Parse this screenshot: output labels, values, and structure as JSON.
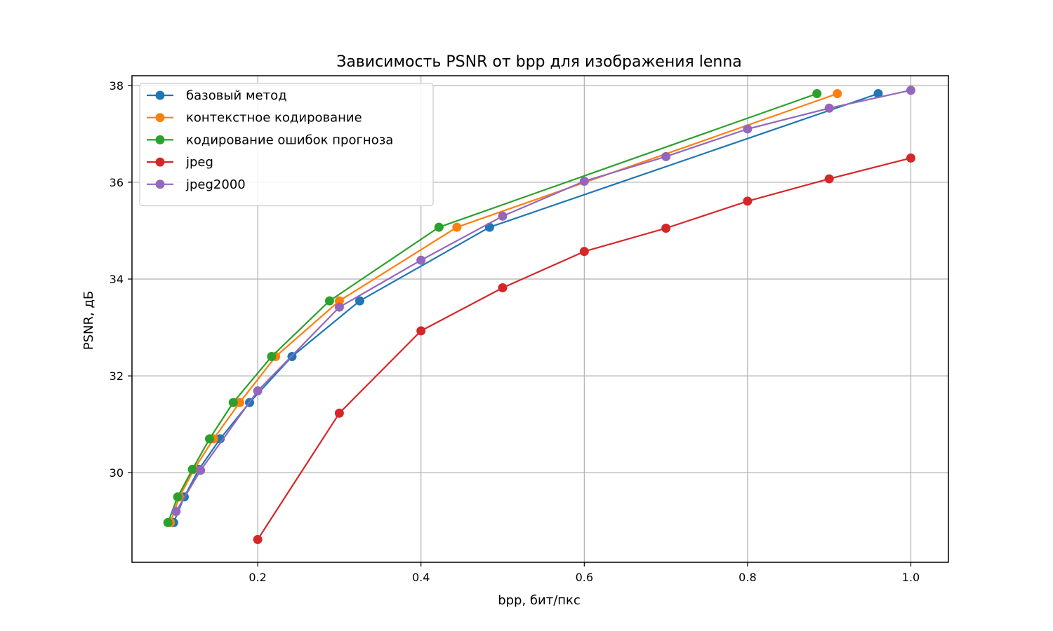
{
  "chart_data": {
    "type": "line",
    "title": "Зависимость PSNR от bpp для изображения lenna",
    "xlabel": "bpp, бит/пкс",
    "ylabel": "PSNR, дБ",
    "xlim": [
      0.046,
      1.046
    ],
    "ylim": [
      28.15,
      38.2
    ],
    "xticks": [
      0.2,
      0.4,
      0.6,
      0.8,
      1.0
    ],
    "xtick_labels": [
      "0.2",
      "0.4",
      "0.6",
      "0.8",
      "1.0"
    ],
    "yticks": [
      30,
      32,
      34,
      36,
      38
    ],
    "ytick_labels": [
      "30",
      "32",
      "34",
      "36",
      "38"
    ],
    "grid": true,
    "legend_position": "top-left",
    "series": [
      {
        "name": "базовый метод",
        "color": "#1f77b4",
        "x": [
          0.097,
          0.11,
          0.128,
          0.154,
          0.19,
          0.242,
          0.325,
          0.484,
          0.96
        ],
        "y": [
          28.97,
          29.5,
          30.07,
          30.7,
          31.45,
          32.4,
          33.55,
          35.07,
          37.83
        ]
      },
      {
        "name": "контекстное кодирование",
        "color": "#ff7f0e",
        "x": [
          0.093,
          0.104,
          0.122,
          0.146,
          0.178,
          0.222,
          0.3,
          0.444,
          0.91
        ],
        "y": [
          28.97,
          29.5,
          30.07,
          30.7,
          31.45,
          32.4,
          33.55,
          35.07,
          37.83
        ]
      },
      {
        "name": "кодирование ошибок прогноза",
        "color": "#2ca02c",
        "x": [
          0.09,
          0.102,
          0.12,
          0.141,
          0.17,
          0.217,
          0.288,
          0.422,
          0.885
        ],
        "y": [
          28.97,
          29.5,
          30.07,
          30.7,
          31.45,
          32.4,
          33.55,
          35.07,
          37.83
        ]
      },
      {
        "name": "jpeg",
        "color": "#d62728",
        "x": [
          0.2,
          0.3,
          0.4,
          0.5,
          0.6,
          0.7,
          0.8,
          0.9,
          1.0
        ],
        "y": [
          28.62,
          31.23,
          32.93,
          33.82,
          34.57,
          35.05,
          35.61,
          36.07,
          36.5
        ]
      },
      {
        "name": "jpeg2000",
        "color": "#9467bd",
        "x": [
          0.1,
          0.13,
          0.2,
          0.3,
          0.4,
          0.5,
          0.6,
          0.7,
          0.8,
          0.9,
          1.0
        ],
        "y": [
          29.2,
          30.05,
          31.69,
          33.42,
          34.39,
          35.3,
          36.02,
          36.53,
          37.1,
          37.53,
          37.9
        ]
      }
    ]
  }
}
